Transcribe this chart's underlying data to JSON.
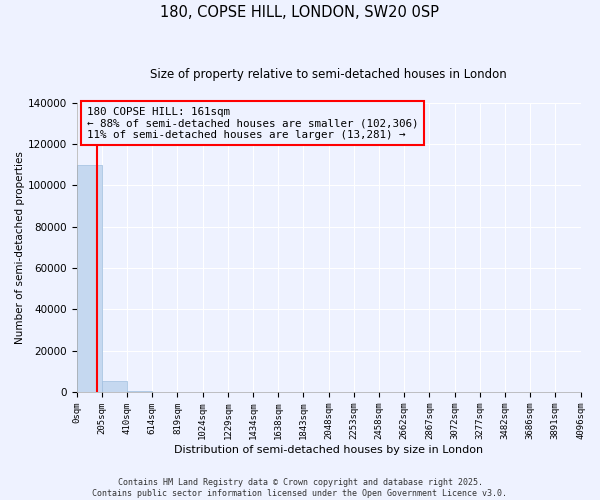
{
  "title": "180, COPSE HILL, LONDON, SW20 0SP",
  "subtitle": "Size of property relative to semi-detached houses in London",
  "xlabel": "Distribution of semi-detached houses by size in London",
  "ylabel": "Number of semi-detached properties",
  "bar_color": "#C5D8F0",
  "bar_edge_color": "#A0BFE0",
  "property_line_color": "red",
  "property_size": 161,
  "annotation_title": "180 COPSE HILL: 161sqm",
  "annotation_line1": "← 88% of semi-detached houses are smaller (102,306)",
  "annotation_line2": "11% of semi-detached houses are larger (13,281) →",
  "footer1": "Contains HM Land Registry data © Crown copyright and database right 2025.",
  "footer2": "Contains public sector information licensed under the Open Government Licence v3.0.",
  "bin_edges": [
    0,
    205,
    410,
    614,
    819,
    1024,
    1229,
    1434,
    1638,
    1843,
    2048,
    2253,
    2458,
    2662,
    2867,
    3072,
    3277,
    3482,
    3686,
    3891,
    4096
  ],
  "bin_counts": [
    110000,
    5200,
    480,
    200,
    100,
    60,
    38,
    24,
    18,
    13,
    10,
    9,
    7,
    6,
    5,
    5,
    4,
    3,
    3,
    2
  ],
  "ylim": [
    0,
    140000
  ],
  "yticks": [
    0,
    20000,
    40000,
    60000,
    80000,
    100000,
    120000,
    140000
  ],
  "background_color": "#EEF2FF",
  "grid_color": "#FFFFFF",
  "annotation_bg": "#EEF2FF"
}
